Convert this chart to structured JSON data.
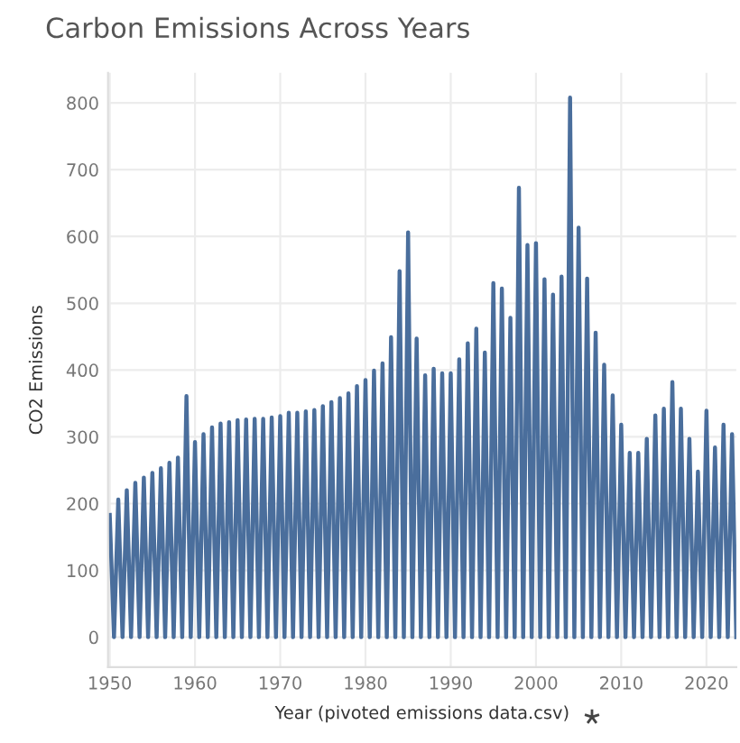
{
  "chart_data": {
    "type": "line",
    "title": "Carbon Emissions Across Years",
    "xlabel": "Year (pivoted emissions data.csv)",
    "ylabel": "CO2 Emissions",
    "x": [
      1950,
      1950.5,
      1951,
      1951.5,
      1952,
      1952.5,
      1953,
      1953.5,
      1954,
      1954.5,
      1955,
      1955.5,
      1956,
      1956.5,
      1957,
      1957.5,
      1958,
      1958.5,
      1959,
      1959.5,
      1960,
      1960.5,
      1961,
      1961.5,
      1962,
      1962.5,
      1963,
      1963.5,
      1964,
      1964.5,
      1965,
      1965.5,
      1966,
      1966.5,
      1967,
      1967.5,
      1968,
      1968.5,
      1969,
      1969.5,
      1970,
      1970.5,
      1971,
      1971.5,
      1972,
      1972.5,
      1973,
      1973.5,
      1974,
      1974.5,
      1975,
      1975.5,
      1976,
      1976.5,
      1977,
      1977.5,
      1978,
      1978.5,
      1979,
      1979.5,
      1980,
      1980.5,
      1981,
      1981.5,
      1982,
      1982.5,
      1983,
      1983.5,
      1984,
      1984.5,
      1985,
      1985.5,
      1986,
      1986.5,
      1987,
      1987.5,
      1988,
      1988.5,
      1989,
      1989.5,
      1990,
      1990.5,
      1991,
      1991.5,
      1992,
      1992.5,
      1993,
      1993.5,
      1994,
      1994.5,
      1995,
      1995.5,
      1996,
      1996.5,
      1997,
      1997.5,
      1998,
      1998.5,
      1999,
      1999.5,
      2000,
      2000.5,
      2001,
      2001.5,
      2002,
      2002.5,
      2003,
      2003.5,
      2004,
      2004.5,
      2005,
      2005.5,
      2006,
      2006.5,
      2007,
      2007.5,
      2008,
      2008.5,
      2009,
      2009.5,
      2010,
      2010.5,
      2011,
      2011.5,
      2012,
      2012.5,
      2013,
      2013.5,
      2014,
      2014.5,
      2015,
      2015.5,
      2016,
      2016.5,
      2017,
      2017.5,
      2018,
      2018.5,
      2019,
      2019.5,
      2020,
      2020.5,
      2021,
      2021.5,
      2022,
      2022.5,
      2023,
      2023.5
    ],
    "series": [
      {
        "color": "#4a6e9c",
        "values": [
          183,
          0,
          206,
          0,
          220,
          0,
          231,
          0,
          239,
          0,
          246,
          0,
          253,
          0,
          261,
          0,
          269,
          0,
          361,
          0,
          292,
          0,
          304,
          0,
          314,
          0,
          320,
          0,
          322,
          0,
          325,
          0,
          326,
          0,
          327,
          0,
          327,
          0,
          329,
          0,
          331,
          0,
          336,
          0,
          336,
          0,
          338,
          0,
          340,
          0,
          346,
          0,
          352,
          0,
          358,
          0,
          365,
          0,
          376,
          0,
          385,
          0,
          399,
          0,
          410,
          0,
          449,
          0,
          548,
          0,
          606,
          0,
          447,
          0,
          392,
          0,
          402,
          0,
          395,
          0,
          395,
          0,
          416,
          0,
          440,
          0,
          462,
          0,
          426,
          0,
          530,
          0,
          522,
          0,
          478,
          0,
          673,
          0,
          587,
          0,
          590,
          0,
          536,
          0,
          513,
          0,
          540,
          0,
          808,
          0,
          613,
          0,
          537,
          0,
          456,
          0,
          408,
          0,
          362,
          0,
          318,
          0,
          276,
          0,
          276,
          0,
          297,
          0,
          332,
          0,
          342,
          0,
          382,
          0,
          342,
          0,
          297,
          0,
          248,
          0,
          339,
          0,
          284,
          0,
          318,
          0,
          304,
          0
        ]
      }
    ],
    "xlim": [
      1949.8,
      2023.5
    ],
    "ylim": [
      -45,
      845
    ],
    "xticks": [
      1950,
      1960,
      1970,
      1980,
      1990,
      2000,
      2010,
      2020
    ],
    "yticks": [
      0,
      100,
      200,
      300,
      400,
      500,
      600,
      700,
      800
    ],
    "grid": true,
    "legend": false,
    "marker": "none",
    "line_style": "solid"
  }
}
